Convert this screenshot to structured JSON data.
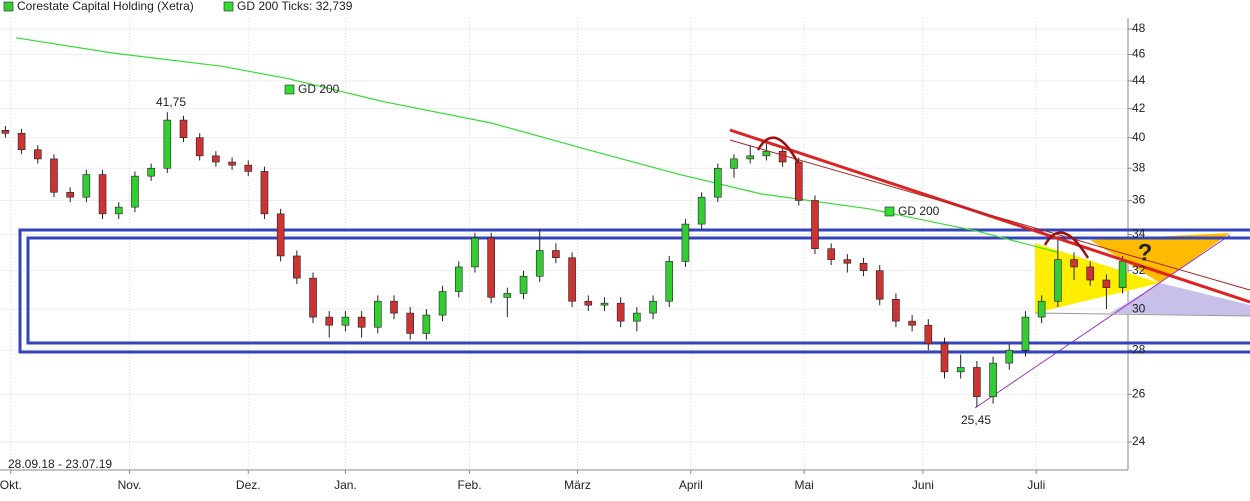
{
  "chart_data": {
    "type": "candlestick",
    "title": "Corestate Capital Holding (Xetra)",
    "date_range": "28.09.18 - 23.07.19",
    "color_up": "#33cc33",
    "color_down": "#cc3333",
    "log_y": true,
    "grid": true,
    "x": [
      0,
      3,
      6,
      9,
      12,
      15,
      18,
      21,
      24,
      27,
      30,
      33,
      36,
      39,
      42,
      45,
      48,
      51,
      54,
      57,
      60,
      63,
      66,
      69,
      72,
      75,
      78,
      81,
      84,
      87,
      90,
      93,
      96,
      99,
      102,
      105,
      108,
      111,
      114,
      117,
      120,
      123,
      126,
      129,
      132,
      135,
      138,
      141,
      144,
      147,
      150,
      153,
      156,
      159,
      162,
      165,
      168,
      171,
      174,
      177,
      180,
      183,
      186,
      189,
      192,
      195,
      198,
      201,
      204,
      207
    ],
    "open": [
      40.5,
      40.3,
      39.2,
      38.6,
      36.5,
      36.2,
      37.6,
      35.2,
      35.6,
      37.5,
      38,
      41.2,
      40,
      38.8,
      38.4,
      38.2,
      37.8,
      35.2,
      32.8,
      31.6,
      29.6,
      29.2,
      29.6,
      29.1,
      30.4,
      29.8,
      28.8,
      29.7,
      30.9,
      32.2,
      33.8,
      30.6,
      30.8,
      31.7,
      33.1,
      32.7,
      30.4,
      30.2,
      30.3,
      29.4,
      29.8,
      30.4,
      32.5,
      34.6,
      36.2,
      38,
      38.6,
      38.8,
      39.1,
      38.4,
      36,
      33.2,
      32.6,
      32.4,
      32,
      30.5,
      29.4,
      29.2,
      28.3,
      27,
      27.2,
      25.9,
      27.4,
      28,
      29.6,
      30.4,
      32.6,
      32.2,
      31.5,
      31.1
    ],
    "high": [
      40.8,
      40.6,
      39.5,
      38.9,
      36.8,
      37.9,
      37.9,
      35.9,
      37.8,
      38.3,
      41.75,
      41.5,
      40.3,
      39.1,
      38.7,
      38.5,
      38.1,
      35.5,
      33.1,
      31.9,
      29.9,
      29.9,
      29.9,
      30.7,
      30.7,
      30.1,
      30.0,
      31.2,
      32.5,
      34.1,
      34.1,
      31.1,
      32.0,
      34.3,
      33.5,
      33.0,
      30.7,
      30.6,
      30.6,
      30.1,
      30.7,
      32.8,
      34.9,
      36.5,
      38.3,
      38.9,
      39.5,
      39.8,
      39.4,
      38.7,
      36.3,
      33.5,
      32.9,
      32.7,
      32.3,
      30.8,
      29.7,
      29.5,
      28.6,
      27.8,
      27.5,
      27.7,
      28.3,
      29.9,
      30.7,
      33.9,
      33.0,
      32.5,
      31.8,
      32.8
    ],
    "low": [
      40.0,
      38.9,
      38.3,
      36.2,
      35.9,
      35.9,
      34.9,
      34.9,
      35.3,
      37.2,
      37.7,
      39.7,
      38.5,
      38.1,
      37.9,
      37.5,
      34.9,
      32.5,
      31.3,
      29.3,
      28.6,
      28.9,
      28.6,
      28.8,
      29.5,
      28.5,
      28.5,
      29.4,
      30.6,
      31.9,
      30.3,
      29.6,
      30.5,
      31.4,
      32.4,
      30.1,
      29.9,
      29.9,
      29.1,
      28.9,
      29.5,
      30.1,
      32.2,
      34.3,
      35.9,
      37.4,
      38.3,
      38.5,
      38.1,
      35.7,
      32.9,
      32.3,
      31.9,
      31.7,
      30.2,
      29.1,
      28.9,
      28.0,
      26.7,
      26.7,
      25.45,
      25.6,
      27.1,
      27.7,
      29.3,
      30.1,
      31.5,
      31.2,
      30.0,
      30.8
    ],
    "close": [
      40.3,
      39.2,
      38.6,
      36.5,
      36.2,
      37.6,
      35.2,
      35.6,
      37.5,
      38,
      41.2,
      40,
      38.8,
      38.4,
      38.2,
      37.8,
      35.2,
      32.8,
      31.6,
      29.6,
      29.2,
      29.6,
      29.1,
      30.4,
      29.8,
      28.8,
      29.7,
      30.9,
      32.2,
      33.8,
      30.6,
      30.8,
      31.7,
      33.1,
      32.7,
      30.4,
      30.2,
      30.3,
      29.4,
      29.8,
      30.4,
      32.5,
      34.6,
      36.2,
      38,
      38.6,
      38.8,
      39.1,
      38.4,
      36,
      33.2,
      32.6,
      32.4,
      32,
      30.5,
      29.4,
      29.2,
      28.3,
      27,
      27.2,
      25.9,
      27.4,
      28,
      29.6,
      30.4,
      32.6,
      32.2,
      31.5,
      31.1,
      32.5
    ],
    "series": [
      {
        "name": "GD 200 Ticks: 32,739",
        "color": "#33dd33",
        "x": [
          2,
          20,
          40,
          52,
          70,
          90,
          110,
          125,
          140,
          160,
          180,
          195
        ],
        "values": [
          47.3,
          46.1,
          45.1,
          44.2,
          42.5,
          41.0,
          39.0,
          37.6,
          36.4,
          35.5,
          34.2,
          33.0
        ]
      }
    ],
    "annotations": [
      "GD 200",
      "GD 200",
      "41,75",
      "25,45",
      "?"
    ],
    "xlim": [
      -1,
      208
    ],
    "xticks": [
      {
        "value": 1,
        "label": "Okt."
      },
      {
        "value": 23,
        "label": "Nov."
      },
      {
        "value": 45,
        "label": "Dez."
      },
      {
        "value": 63,
        "label": "Jan."
      },
      {
        "value": 86,
        "label": "Feb."
      },
      {
        "value": 106,
        "label": "März"
      },
      {
        "value": 127,
        "label": "April"
      },
      {
        "value": 148,
        "label": "Mai"
      },
      {
        "value": 170,
        "label": "Juni"
      },
      {
        "value": 191,
        "label": "Juli"
      }
    ],
    "ylim": [
      22.9,
      48.9
    ],
    "yticks": [
      24,
      26,
      28,
      30,
      32,
      34,
      36,
      38,
      40,
      42,
      44,
      46,
      48
    ]
  }
}
